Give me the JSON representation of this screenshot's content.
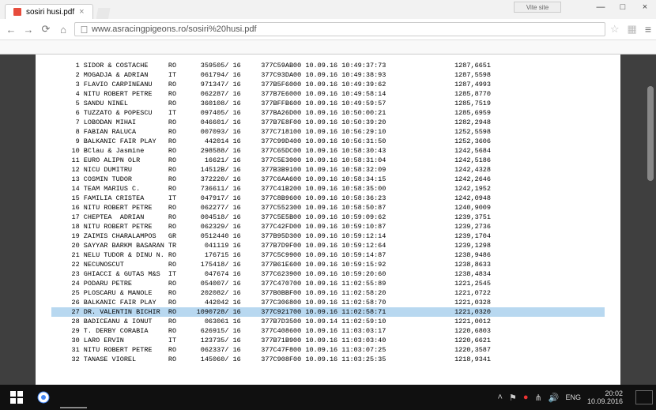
{
  "tab": {
    "title": "sosiri husi.pdf"
  },
  "url": "www.asracingpigeons.ro/sosiri%20husi.pdf",
  "pin_label": "Vite site",
  "rows": [
    {
      "n": "1",
      "name": "SIDOR & COSTACHE",
      "c": "RO",
      "ring": "359505/",
      "y": "16",
      "pig": "377C59AB00",
      "date": "10.09.16",
      "time": "10:49:37:73",
      "speed": "1287,6651"
    },
    {
      "n": "2",
      "name": "MOGADJA & ADRIAN",
      "c": "IT",
      "ring": "061794/",
      "y": "16",
      "pig": "377C93DA00",
      "date": "10.09.16",
      "time": "10:49:38:93",
      "speed": "1287,5598"
    },
    {
      "n": "3",
      "name": "FLAVIO CARPINEANU",
      "c": "RO",
      "ring": "971347/",
      "y": "16",
      "pig": "377B5F6000",
      "date": "10.09.16",
      "time": "10:49:39:62",
      "speed": "1287,4993"
    },
    {
      "n": "4",
      "name": "NITU ROBERT PETRE",
      "c": "RO",
      "ring": "062287/",
      "y": "16",
      "pig": "377B7E6000",
      "date": "10.09.16",
      "time": "10:49:58:14",
      "speed": "1285,8770"
    },
    {
      "n": "5",
      "name": "SANDU NINEL",
      "c": "RO",
      "ring": "360108/",
      "y": "16",
      "pig": "377BFFB600",
      "date": "10.09.16",
      "time": "10:49:59:57",
      "speed": "1285,7519"
    },
    {
      "n": "6",
      "name": "TUZZATO & POPESCU",
      "c": "IT",
      "ring": "097405/",
      "y": "16",
      "pig": "377BA26D00",
      "date": "10.09.16",
      "time": "10:50:00:21",
      "speed": "1285,6959"
    },
    {
      "n": "7",
      "name": "LOBODAN MIHAI",
      "c": "RO",
      "ring": "046601/",
      "y": "16",
      "pig": "377B7E8F00",
      "date": "10.09.16",
      "time": "10:50:39:20",
      "speed": "1282,2948"
    },
    {
      "n": "8",
      "name": "FABIAN RALUCA",
      "c": "RO",
      "ring": "007093/",
      "y": "16",
      "pig": "377C718100",
      "date": "10.09.16",
      "time": "10:56:29:10",
      "speed": "1252,5598"
    },
    {
      "n": "9",
      "name": "BALKANIC FAIR PLAY",
      "c": "RO",
      "ring": "442014",
      "y": "16",
      "pig": "377C99D400",
      "date": "10.09.16",
      "time": "10:56:31:50",
      "speed": "1252,3606"
    },
    {
      "n": "10",
      "name": "BClau & Jasmine",
      "c": "RO",
      "ring": "298588/",
      "y": "16",
      "pig": "377C65DC00",
      "date": "10.09.16",
      "time": "10:58:30:43",
      "speed": "1242,5684"
    },
    {
      "n": "11",
      "name": "EURO ALIPN OLR",
      "c": "RO",
      "ring": "16621/",
      "y": "16",
      "pig": "377C5E3000",
      "date": "10.09.16",
      "time": "10:58:31:04",
      "speed": "1242,5186"
    },
    {
      "n": "12",
      "name": "NICU DUMITRU",
      "c": "RO",
      "ring": "14512B/",
      "y": "16",
      "pig": "377B3B9100",
      "date": "10.09.16",
      "time": "10:58:32:09",
      "speed": "1242,4328"
    },
    {
      "n": "13",
      "name": "COSMIN TUDOR",
      "c": "RO",
      "ring": "372220/",
      "y": "16",
      "pig": "377C6AA600",
      "date": "10.09.16",
      "time": "10:58:34:15",
      "speed": "1242,2646"
    },
    {
      "n": "14",
      "name": "TEAM MARIUS C.",
      "c": "RO",
      "ring": "736611/",
      "y": "16",
      "pig": "377C41B200",
      "date": "10.09.16",
      "time": "10:58:35:00",
      "speed": "1242,1952"
    },
    {
      "n": "15",
      "name": "FAMILIA CRISTEA",
      "c": "IT",
      "ring": "047917/",
      "y": "16",
      "pig": "377C8B9600",
      "date": "10.09.16",
      "time": "10:58:36:23",
      "speed": "1242,0948"
    },
    {
      "n": "16",
      "name": "NITU ROBERT PETRE",
      "c": "RO",
      "ring": "062277/",
      "y": "16",
      "pig": "377C552300",
      "date": "10.09.16",
      "time": "10:58:50:87",
      "speed": "1240,9009"
    },
    {
      "n": "17",
      "name": "CHEPTEA  ADRIAN",
      "c": "RO",
      "ring": "004518/",
      "y": "16",
      "pig": "377C5E5B00",
      "date": "10.09.16",
      "time": "10:59:09:62",
      "speed": "1239,3751"
    },
    {
      "n": "18",
      "name": "NITU ROBERT PETRE",
      "c": "RO",
      "ring": "062329/",
      "y": "16",
      "pig": "377C42FD00",
      "date": "10.09.16",
      "time": "10:59:10:87",
      "speed": "1239,2736"
    },
    {
      "n": "19",
      "name": "ZAIMIS CHARALAMPOS",
      "c": "GR",
      "ring": "0512440",
      "y": "16",
      "pig": "377B95D300",
      "date": "10.09.16",
      "time": "10:59:12:14",
      "speed": "1239,1704"
    },
    {
      "n": "20",
      "name": "SAYYAR BARKM BASARAN",
      "c": "TR",
      "ring": "041119",
      "y": "16",
      "pig": "377B7D9F00",
      "date": "10.09.16",
      "time": "10:59:12:64",
      "speed": "1239,1298"
    },
    {
      "n": "21",
      "name": "NELU TUDOR & DINU N.",
      "c": "RO",
      "ring": "176715",
      "y": "16",
      "pig": "377C5C9900",
      "date": "10.09.16",
      "time": "10:59:14:87",
      "speed": "1238,9486"
    },
    {
      "n": "22",
      "name": "NECUNOSCUT",
      "c": "RO",
      "ring": "175418/",
      "y": "16",
      "pig": "377B61E600",
      "date": "10.09.16",
      "time": "10:59:15:92",
      "speed": "1238,8633"
    },
    {
      "n": "23",
      "name": "GHIACCI & GUTAS M&S",
      "c": "IT",
      "ring": "047674",
      "y": "16",
      "pig": "377C623900",
      "date": "10.09.16",
      "time": "10:59:20:60",
      "speed": "1238,4834"
    },
    {
      "n": "24",
      "name": "PODARU PETRE",
      "c": "RO",
      "ring": "054007/",
      "y": "16",
      "pig": "377C470700",
      "date": "10.09.16",
      "time": "11:02:55:89",
      "speed": "1221,2545"
    },
    {
      "n": "25",
      "name": "PLOSCARU & MANOLE",
      "c": "RO",
      "ring": "202082/",
      "y": "16",
      "pig": "377B0BBF00",
      "date": "10.09.16",
      "time": "11:02:58:20",
      "speed": "1221,0722"
    },
    {
      "n": "26",
      "name": "BALKANIC FAIR PLAY",
      "c": "RO",
      "ring": "442042",
      "y": "16",
      "pig": "377C306800",
      "date": "10.09.16",
      "time": "11:02:58:70",
      "speed": "1221,0328"
    },
    {
      "n": "27",
      "name": "DR. VALENTIN BICHIR",
      "c": "RO",
      "ring": "1090728/",
      "y": "16",
      "pig": "377C921700",
      "date": "10.09.16",
      "time": "11:02:58:71",
      "speed": "1221,0320",
      "hl": true
    },
    {
      "n": "28",
      "name": "BADICEANU & IONUT",
      "c": "RO",
      "ring": "063061",
      "y": "16",
      "pig": "377B7D3500",
      "date": "10.09.14",
      "time": "11:02:59:10",
      "speed": "1221,0012"
    },
    {
      "n": "29",
      "name": "T. DERBY CORABIA",
      "c": "RO",
      "ring": "626915/",
      "y": "16",
      "pig": "377C408600",
      "date": "10.09.16",
      "time": "11:03:03:17",
      "speed": "1220,6803"
    },
    {
      "n": "30",
      "name": "LARO ERVIN",
      "c": "IT",
      "ring": "123735/",
      "y": "16",
      "pig": "377B71B900",
      "date": "10.09.16",
      "time": "11:03:03:40",
      "speed": "1220,6621"
    },
    {
      "n": "31",
      "name": "NITU ROBERT PETRE",
      "c": "RO",
      "ring": "062337/",
      "y": "16",
      "pig": "377C47F800",
      "date": "10.09.16",
      "time": "11:03:07:25",
      "speed": "1220,3587"
    },
    {
      "n": "32",
      "name": "TANASE VIOREL",
      "c": "RO",
      "ring": "145060/",
      "y": "16",
      "pig": "377C908F00",
      "date": "10.09.16",
      "time": "11:03:25:35",
      "speed": "1218,9341"
    }
  ],
  "lang": "ENG",
  "clock": {
    "time": "20:02",
    "date": "10.09.2016"
  },
  "colors": {
    "highlight": "#b8d8f0",
    "pdf_bg": "#3f3f3f",
    "taskbar": "#101010"
  }
}
